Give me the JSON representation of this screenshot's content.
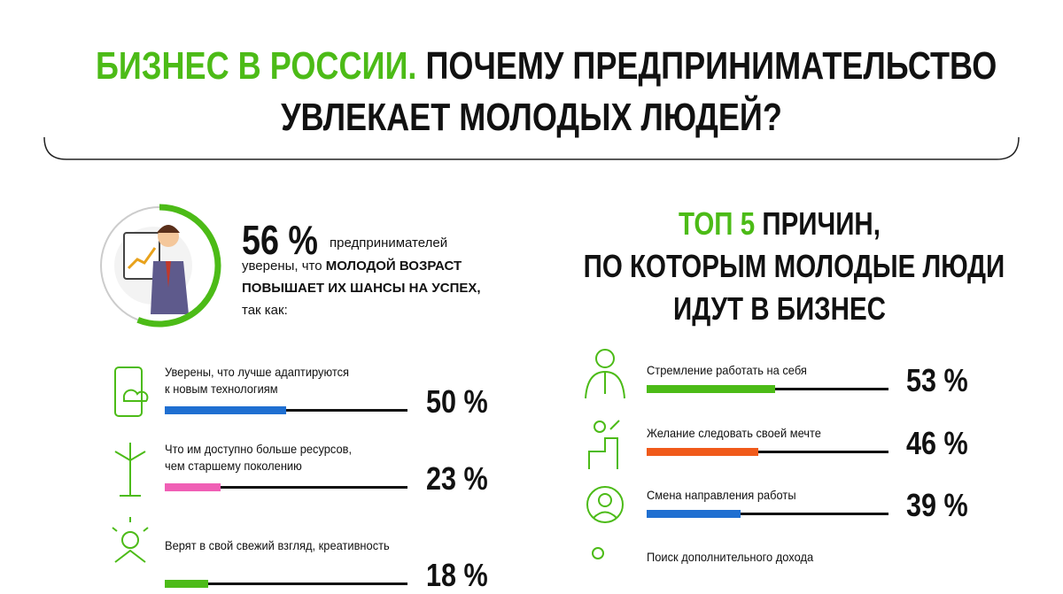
{
  "header": {
    "title_highlight": "БИЗНЕС В РОССИИ.",
    "title_line1_rest": "ПОЧЕМУ ПРЕДПРИНИМАТЕЛЬСТВО",
    "title_line2": "УВЛЕКАЕТ МОЛОДЫХ ЛЮДЕЙ?"
  },
  "left": {
    "stat": {
      "value": 56,
      "label": "56 %",
      "color": "#4cbb17"
    },
    "intro_1": "предпринимателей",
    "intro_2": "уверены, что",
    "intro_bold_1": "МОЛОДОЙ ВОЗРАСТ",
    "intro_bold_2": "ПОВЫШАЕТ ИХ ШАНСЫ НА УСПЕХ,",
    "intro_3": "так как:",
    "xlim": [
      0,
      100
    ],
    "items": [
      {
        "lines": [
          "Уверены, что лучше адаптируются",
          "к новым технологиям"
        ],
        "value": 50,
        "value_label": "50 %",
        "color": "#1f6fd1"
      },
      {
        "lines": [
          "Что им доступно больше ресурсов,",
          "чем старшему поколению"
        ],
        "value": 23,
        "value_label": "23 %",
        "color": "#f05fb5"
      },
      {
        "lines": [
          "Верят в свой свежий взгляд, креативность"
        ],
        "value": 18,
        "value_label": "18 %",
        "color": "#4cbb17"
      }
    ]
  },
  "right": {
    "title_highlight": "ТОП 5",
    "title_lines": [
      "ПРИЧИН,",
      "ПО КОТОРЫМ МОЛОДЫЕ ЛЮДИ",
      "ИДУТ В БИЗНЕС"
    ],
    "xlim": [
      0,
      100
    ],
    "items": [
      {
        "lines": [
          "Стремление работать на себя"
        ],
        "value": 53,
        "value_label": "53 %",
        "color": "#4cbb17"
      },
      {
        "lines": [
          "Желание следовать своей мечте"
        ],
        "value": 46,
        "value_label": "46 %",
        "color": "#f05a1a"
      },
      {
        "lines": [
          "Смена направления работы"
        ],
        "value": 39,
        "value_label": "39 %",
        "color": "#1f6fd1"
      },
      {
        "lines": [
          "Поиск дополнительного дохода"
        ]
      }
    ]
  }
}
